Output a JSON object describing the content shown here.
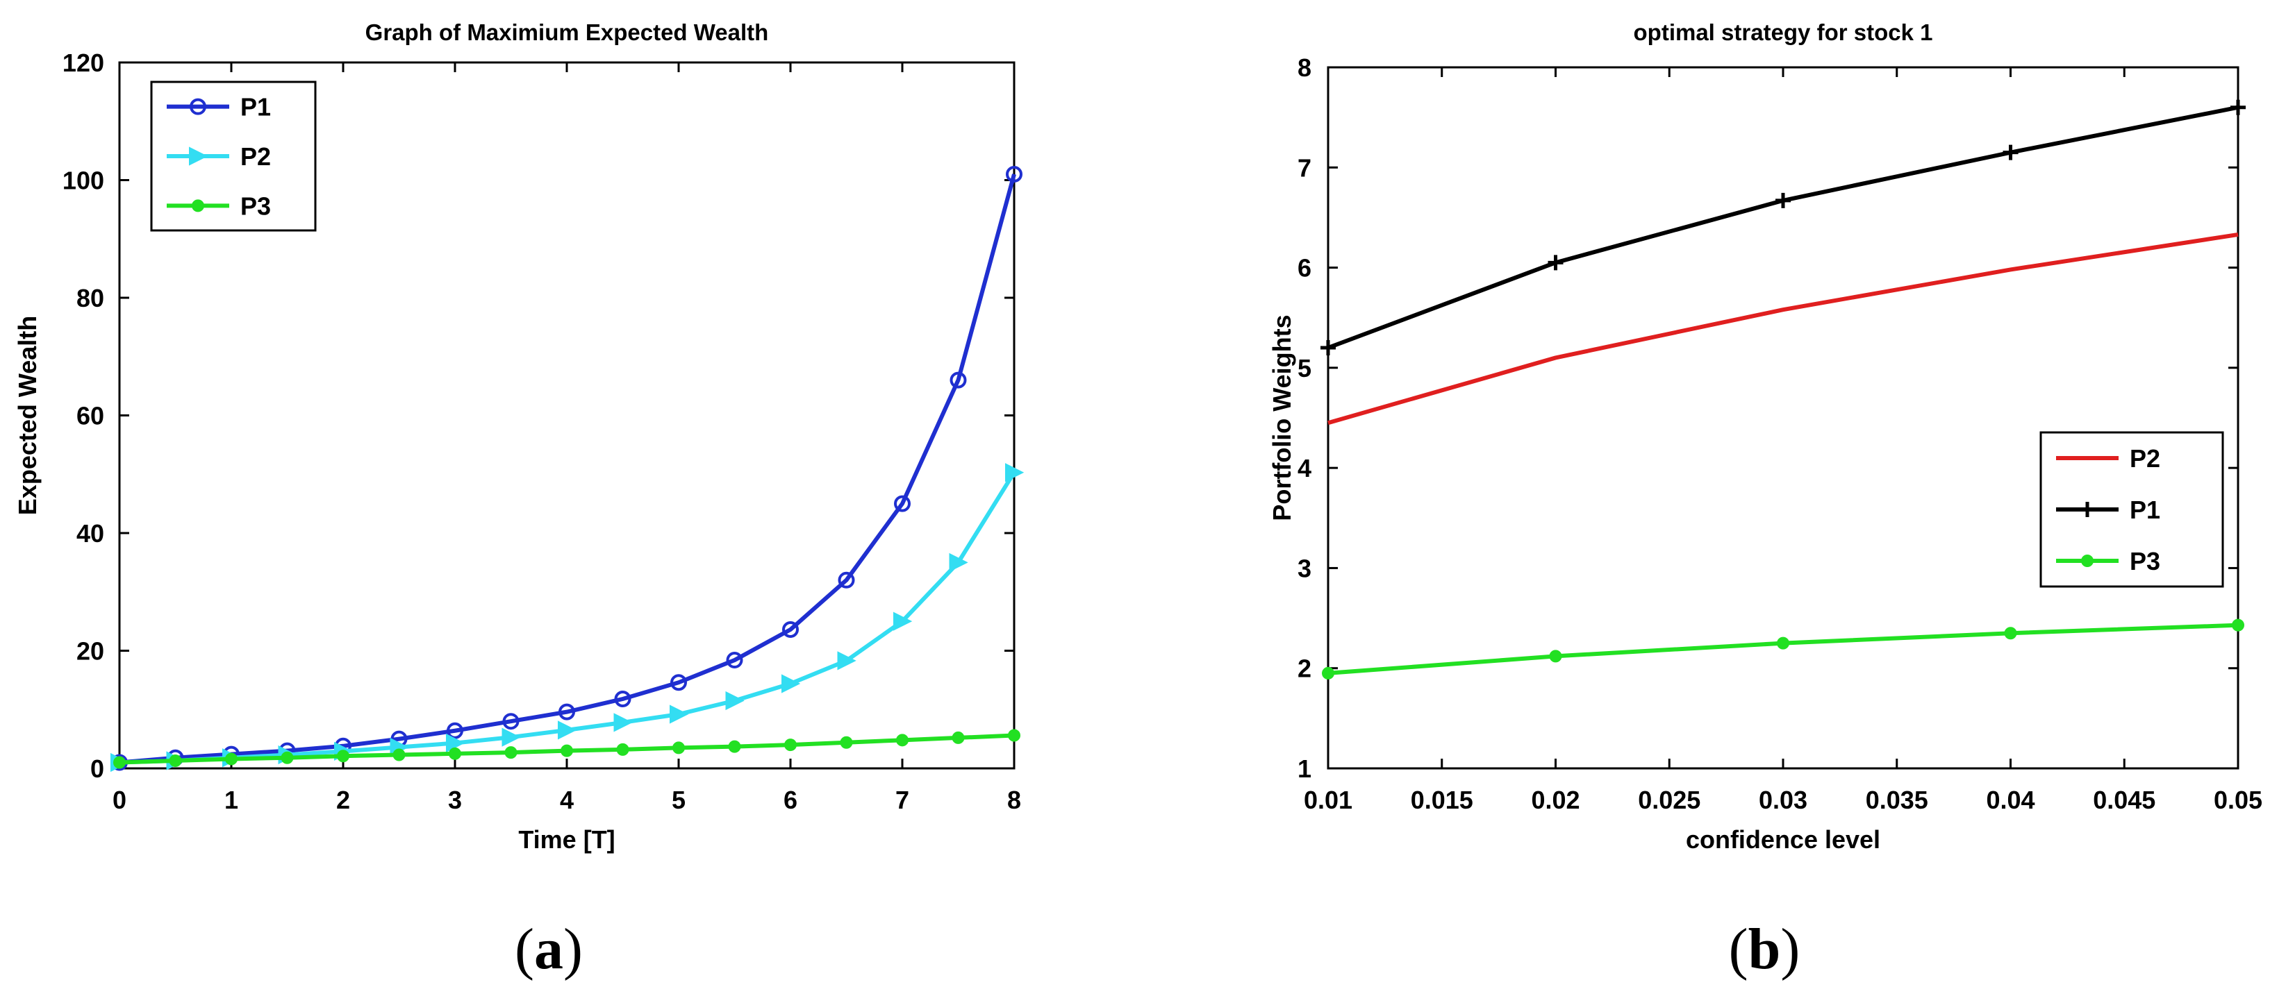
{
  "chart_data": [
    {
      "type": "line",
      "title": "Graph of Maximium Expected Wealth",
      "xlabel": "Time [T]",
      "ylabel": "Expected Wealth",
      "xlim": [
        0,
        8
      ],
      "ylim": [
        0,
        120
      ],
      "xticks": [
        "0",
        "1",
        "2",
        "3",
        "4",
        "5",
        "6",
        "7",
        "8"
      ],
      "yticks": [
        "0",
        "20",
        "40",
        "60",
        "80",
        "100",
        "120"
      ],
      "x": [
        0,
        0.5,
        1,
        1.5,
        2,
        2.5,
        3,
        3.5,
        4,
        4.5,
        5,
        5.5,
        6,
        6.5,
        7,
        7.5,
        8
      ],
      "series": [
        {
          "name": "P1",
          "color": "#1f2fd0",
          "marker": "circle",
          "values": [
            1.0,
            1.8,
            2.4,
            3.0,
            3.8,
            5.0,
            6.4,
            8.0,
            9.6,
            11.8,
            14.6,
            18.4,
            23.6,
            32.0,
            45.0,
            66.0,
            101.0
          ]
        },
        {
          "name": "P2",
          "color": "#33ddf2",
          "marker": "triangle-right",
          "values": [
            1.0,
            1.3,
            1.8,
            2.3,
            2.9,
            3.6,
            4.3,
            5.3,
            6.5,
            7.8,
            9.2,
            11.5,
            14.4,
            18.3,
            25.0,
            35.0,
            50.3
          ]
        },
        {
          "name": "P3",
          "color": "#22e022",
          "marker": "dot",
          "values": [
            1.0,
            1.3,
            1.6,
            1.8,
            2.1,
            2.3,
            2.5,
            2.7,
            3.0,
            3.2,
            3.5,
            3.7,
            4.0,
            4.4,
            4.8,
            5.2,
            5.6
          ]
        }
      ],
      "legend_position": "top-left",
      "caption": "(a)",
      "caption_letter": "a"
    },
    {
      "type": "line",
      "title": "optimal strategy for stock 1",
      "xlabel": "confidence level",
      "ylabel": "Portfolio Weights",
      "xlim": [
        0.01,
        0.05
      ],
      "ylim": [
        1,
        8
      ],
      "xticks": [
        "0.01",
        "0.015",
        "0.02",
        "0.025",
        "0.03",
        "0.035",
        "0.04",
        "0.045",
        "0.05"
      ],
      "yticks": [
        "1",
        "2",
        "3",
        "4",
        "5",
        "6",
        "7",
        "8"
      ],
      "x": [
        0.01,
        0.02,
        0.03,
        0.04,
        0.05
      ],
      "series": [
        {
          "name": "P2",
          "color": "#e01f1f",
          "marker": "none",
          "values": [
            4.45,
            5.1,
            5.58,
            5.98,
            6.33
          ]
        },
        {
          "name": "P1",
          "color": "#000000",
          "marker": "plus",
          "values": [
            5.2,
            6.05,
            6.67,
            7.15,
            7.6
          ]
        },
        {
          "name": "P3",
          "color": "#22e022",
          "marker": "dot",
          "values": [
            1.95,
            2.12,
            2.25,
            2.35,
            2.43
          ]
        }
      ],
      "legend_position": "center-right",
      "caption": "(b)",
      "caption_letter": "b"
    }
  ]
}
